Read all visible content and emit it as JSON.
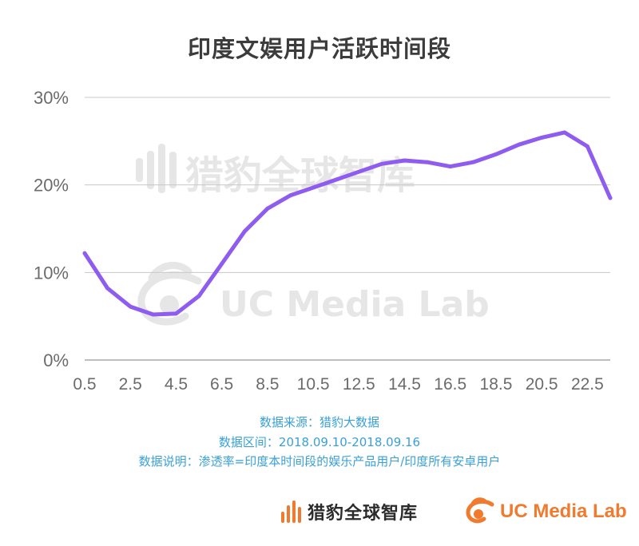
{
  "chart_data": {
    "type": "line",
    "title": "印度文娱用户活跃时间段",
    "x": [
      0.5,
      1.5,
      2.5,
      3.5,
      4.5,
      5.5,
      6.5,
      7.5,
      8.5,
      9.5,
      10.5,
      11.5,
      12.5,
      13.5,
      14.5,
      15.5,
      16.5,
      17.5,
      18.5,
      19.5,
      20.5,
      21.5,
      22.5,
      23.5
    ],
    "x_tick_labels": [
      "0.5",
      "2.5",
      "4.5",
      "6.5",
      "8.5",
      "10.5",
      "12.5",
      "14.5",
      "16.5",
      "18.5",
      "20.5",
      "22.5"
    ],
    "series": [
      {
        "values": [
          12.2,
          8.2,
          6.1,
          5.2,
          5.3,
          7.3,
          11.0,
          14.7,
          17.3,
          18.8,
          19.7,
          20.6,
          21.5,
          22.4,
          22.8,
          22.6,
          22.1,
          22.6,
          23.5,
          24.6,
          25.4,
          26.0,
          24.4,
          18.5
        ],
        "color": "#8f5cf0"
      }
    ],
    "ylim": [
      0,
      30
    ],
    "y_ticks": [
      0,
      10,
      20,
      30
    ],
    "y_tick_labels": [
      "0%",
      "10%",
      "20%",
      "30%"
    ],
    "xlim": [
      0.5,
      23.5
    ],
    "grid": "horizontal",
    "gridline_color": "#c8c8c8"
  },
  "notes": {
    "source": "数据来源：猎豹大数据",
    "range": "数据区间：2018.09.10-2018.09.16",
    "description": "数据说明：渗透率=印度本时间段的娱乐产品用户/印度所有安卓用户"
  },
  "watermark": {
    "cn_brand": "猎豹全球智库",
    "uc_brand": "UC Media Lab"
  },
  "footer": {
    "cn_brand": "猎豹全球智库",
    "uc_brand": "UC Media Lab"
  },
  "colors": {
    "accent_orange": "#f07a2d",
    "note_blue": "#3aa0d6",
    "title": "#3c3c3c"
  }
}
